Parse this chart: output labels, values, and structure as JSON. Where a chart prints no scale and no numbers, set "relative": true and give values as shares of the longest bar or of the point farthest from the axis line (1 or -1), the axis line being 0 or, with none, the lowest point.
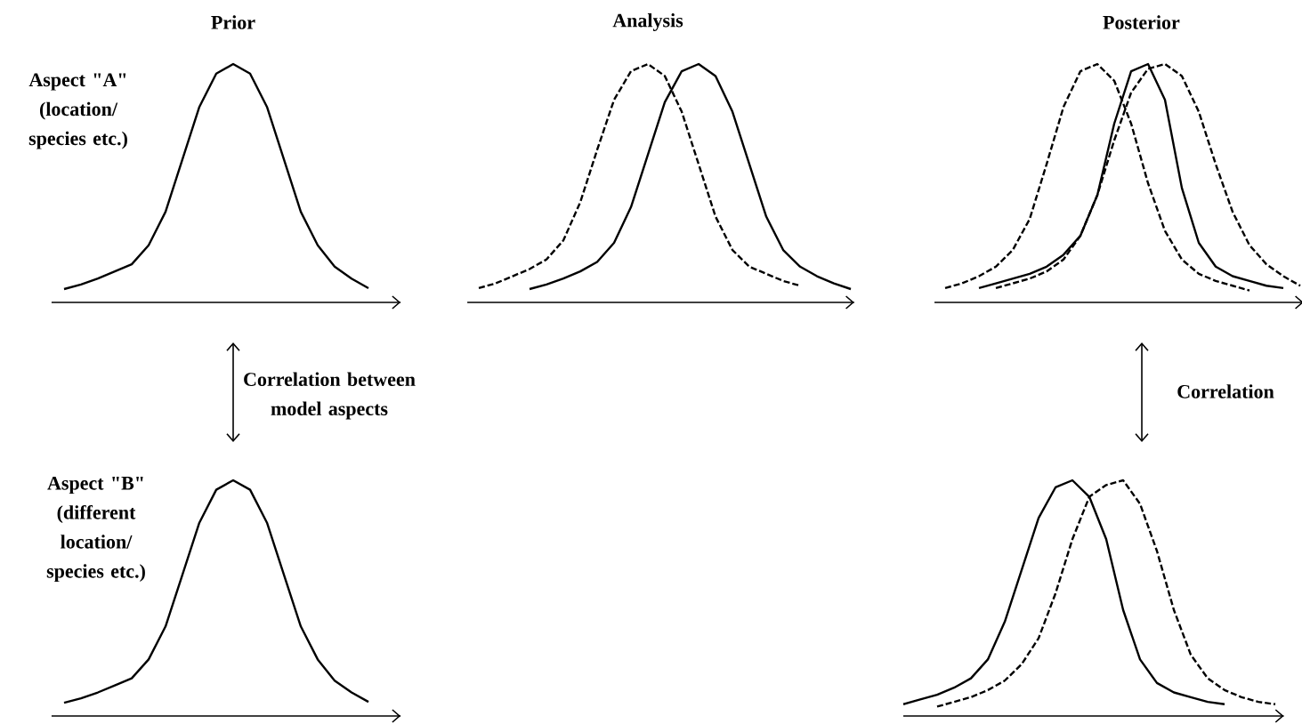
{
  "chart_data": [
    {
      "type": "line",
      "relative": true,
      "title": "Prior",
      "annotations": [
        "Aspect \"A\" (location/ species etc.)",
        "Correlation between model aspects"
      ],
      "categories": [
        null,
        null,
        null,
        null,
        null,
        null,
        null,
        null,
        null,
        null,
        null,
        null,
        null,
        null,
        null,
        null,
        null,
        null,
        null
      ],
      "series": [
        {
          "color": "#000000",
          "line_style": "solid",
          "values": [
            0.056,
            0.075,
            0.1,
            0.13,
            0.16,
            0.24,
            0.38,
            0.6,
            0.82,
            0.96,
            1,
            0.96,
            0.82,
            0.6,
            0.38,
            0.24,
            0.15,
            0.1,
            0.06
          ]
        }
      ]
    },
    {
      "type": "line",
      "relative": true,
      "title": "Analysis",
      "categories": [
        null,
        null,
        null,
        null,
        null,
        null,
        null,
        null,
        null,
        null,
        null,
        null,
        null,
        null,
        null,
        null,
        null,
        null,
        null,
        null,
        null,
        null,
        null
      ],
      "series": [
        {
          "color": "#000000",
          "line_style": "dashed",
          "values": [
            0.06,
            0.08,
            0.11,
            0.14,
            0.18,
            0.26,
            0.42,
            0.64,
            0.85,
            0.97,
            1,
            0.95,
            0.8,
            0.58,
            0.36,
            0.22,
            0.15,
            0.12,
            0.09,
            0.07,
            null,
            null,
            null
          ]
        },
        {
          "color": "#000000",
          "line_style": "solid",
          "values": [
            null,
            null,
            null,
            0.056,
            0.075,
            0.1,
            0.13,
            0.17,
            0.25,
            0.4,
            0.62,
            0.84,
            0.97,
            1,
            0.95,
            0.8,
            0.58,
            0.36,
            0.22,
            0.15,
            0.11,
            0.08,
            0.056
          ]
        }
      ]
    },
    {
      "type": "line",
      "relative": true,
      "title": "Posterior",
      "annotations": [
        "Correlation"
      ],
      "categories": [
        null,
        null,
        null,
        null,
        null,
        null,
        null,
        null,
        null,
        null,
        null,
        null,
        null,
        null,
        null,
        null,
        null,
        null,
        null,
        null,
        null,
        null
      ],
      "series": [
        {
          "color": "#000000",
          "line_style": "dashed",
          "values": [
            0.06,
            0.08,
            0.11,
            0.15,
            0.22,
            0.35,
            0.58,
            0.82,
            0.97,
            1,
            0.93,
            0.75,
            0.5,
            0.3,
            0.18,
            0.12,
            0.09,
            0.07,
            0.05,
            null,
            null,
            null
          ]
        },
        {
          "color": "#000000",
          "line_style": "solid",
          "values": [
            null,
            null,
            0.06,
            0.08,
            0.1,
            0.12,
            0.15,
            0.2,
            0.28,
            0.45,
            0.75,
            0.97,
            1,
            0.85,
            0.48,
            0.25,
            0.15,
            0.11,
            0.09,
            0.07,
            0.06,
            null
          ]
        },
        {
          "color": "#000000",
          "line_style": "dashed",
          "values": [
            null,
            null,
            null,
            0.06,
            0.08,
            0.1,
            0.13,
            0.18,
            0.28,
            0.45,
            0.68,
            0.88,
            0.98,
            1,
            0.95,
            0.8,
            0.58,
            0.38,
            0.24,
            0.16,
            0.11,
            0.07
          ]
        }
      ]
    },
    {
      "type": "line",
      "relative": true,
      "annotations": [
        "Aspect \"B\" (different location/ species etc.)"
      ],
      "categories": [
        null,
        null,
        null,
        null,
        null,
        null,
        null,
        null,
        null,
        null,
        null,
        null,
        null,
        null,
        null,
        null,
        null,
        null,
        null
      ],
      "series": [
        {
          "color": "#000000",
          "line_style": "solid",
          "values": [
            0.056,
            0.075,
            0.1,
            0.13,
            0.16,
            0.24,
            0.38,
            0.6,
            0.82,
            0.96,
            1,
            0.96,
            0.82,
            0.6,
            0.38,
            0.24,
            0.15,
            0.1,
            0.06
          ]
        }
      ]
    },
    {
      "type": "line",
      "relative": true,
      "categories": [
        null,
        null,
        null,
        null,
        null,
        null,
        null,
        null,
        null,
        null,
        null,
        null,
        null,
        null,
        null,
        null,
        null,
        null,
        null,
        null,
        null,
        null,
        null
      ],
      "series": [
        {
          "color": "#000000",
          "line_style": "solid",
          "values": [
            0.05,
            0.07,
            0.09,
            0.12,
            0.16,
            0.24,
            0.4,
            0.62,
            0.84,
            0.97,
            1,
            0.93,
            0.75,
            0.45,
            0.24,
            0.14,
            0.1,
            0.08,
            0.06,
            0.05,
            null,
            null,
            null
          ]
        },
        {
          "color": "#000000",
          "line_style": "dashed",
          "values": [
            null,
            null,
            0.04,
            0.06,
            0.08,
            0.11,
            0.15,
            0.22,
            0.33,
            0.52,
            0.75,
            0.93,
            0.98,
            1,
            0.9,
            0.7,
            0.45,
            0.26,
            0.16,
            0.11,
            0.08,
            0.06,
            0.05
          ]
        }
      ]
    }
  ]
}
